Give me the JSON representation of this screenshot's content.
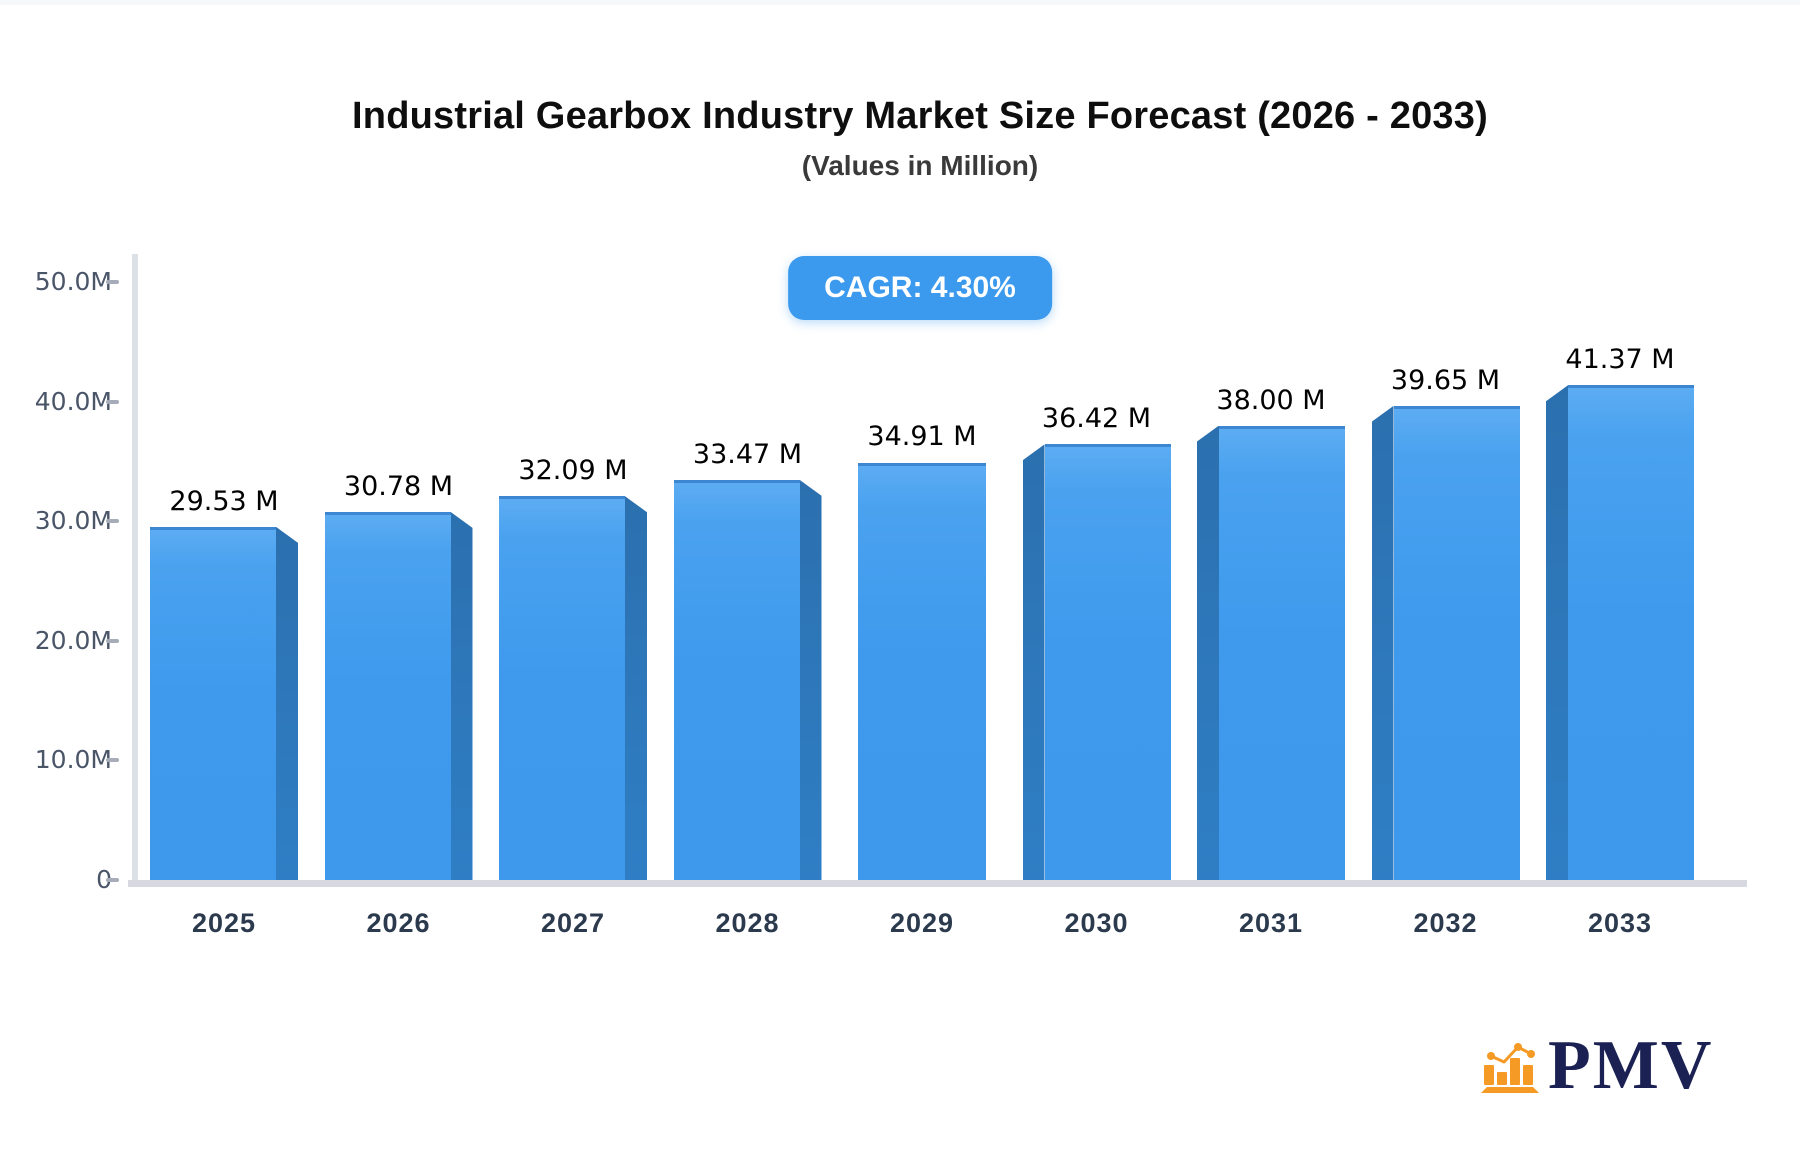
{
  "chart_data": {
    "type": "bar",
    "title": "Industrial Gearbox Industry Market Size Forecast (2026 - 2033)",
    "subtitle": "(Values in Million)",
    "cagr_label": "CAGR: 4.30%",
    "categories": [
      "2025",
      "2026",
      "2027",
      "2028",
      "2029",
      "2030",
      "2031",
      "2032",
      "2033"
    ],
    "values": [
      29.53,
      30.78,
      32.09,
      33.47,
      34.91,
      36.42,
      38.0,
      39.65,
      41.37
    ],
    "value_labels": [
      "29.53 M",
      "30.78 M",
      "32.09 M",
      "33.47 M",
      "34.91 M",
      "36.42 M",
      "38.00 M",
      "39.65 M",
      "41.37 M"
    ],
    "unit": "Million",
    "ylim": [
      0,
      50
    ],
    "ytick_labels": [
      "0",
      "10.0M",
      "20.0M",
      "30.0M",
      "40.0M",
      "50.0M"
    ],
    "grid": "off",
    "legend": "none",
    "bar_color": "#3f9aee",
    "bar_side_color": "#2e79bd",
    "badge_color": "#3b9aed"
  },
  "logo": {
    "text": "PMV",
    "icon": "bar-chart-with-trend-icon",
    "icon_color": "#f59b25",
    "text_color": "#1b2153"
  }
}
